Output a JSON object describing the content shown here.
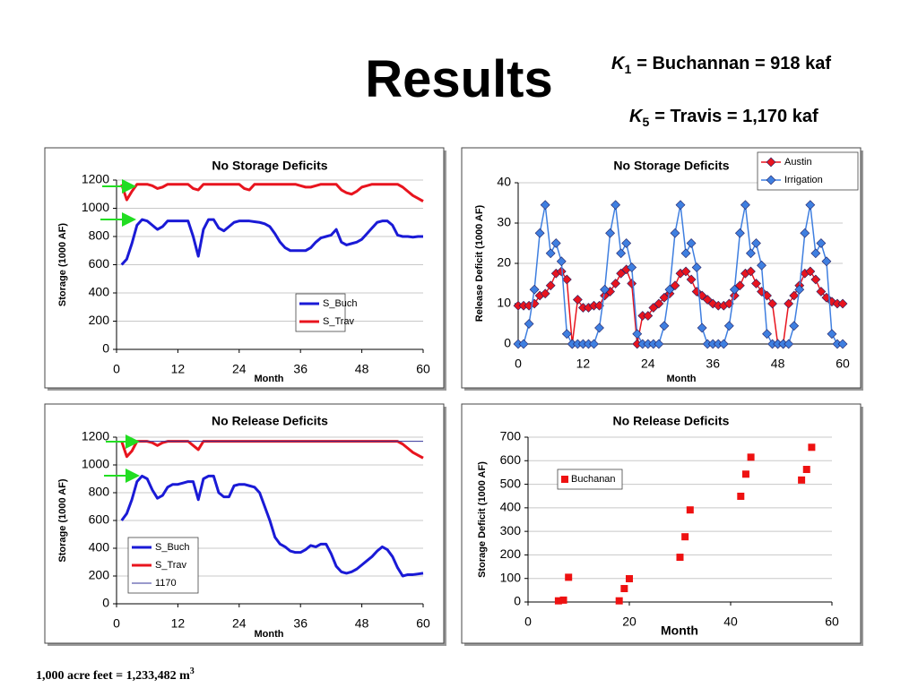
{
  "header": {
    "title": "Results",
    "notes": [
      {
        "symbol": "K",
        "subscript": "1",
        "text": "= Buchannan = 918 kaf"
      },
      {
        "symbol": "K",
        "subscript": "5",
        "text": "= Travis = 1,170 kaf"
      }
    ]
  },
  "footer": {
    "text": "1,000 acre feet = 1,233,482 m",
    "superscript": "3"
  },
  "chart_data": [
    {
      "type": "line",
      "title": "No Storage Deficits",
      "xlabel": "Month",
      "ylabel": "Storage (1000 AF)",
      "x": [
        1,
        2,
        3,
        4,
        5,
        6,
        7,
        8,
        9,
        10,
        11,
        12,
        13,
        14,
        15,
        16,
        17,
        18,
        19,
        20,
        21,
        22,
        23,
        24,
        25,
        26,
        27,
        28,
        29,
        30,
        31,
        32,
        33,
        34,
        35,
        36,
        37,
        38,
        39,
        40,
        41,
        42,
        43,
        44,
        45,
        46,
        47,
        48,
        49,
        50,
        51,
        52,
        53,
        54,
        55,
        56,
        57,
        58,
        59,
        60
      ],
      "series": [
        {
          "name": "S_Buch",
          "color": "#1a1ad6",
          "width": 3,
          "values": [
            600,
            640,
            750,
            880,
            920,
            910,
            880,
            850,
            870,
            910,
            910,
            910,
            910,
            910,
            800,
            660,
            850,
            920,
            920,
            860,
            840,
            870,
            900,
            910,
            910,
            910,
            905,
            900,
            890,
            870,
            820,
            760,
            720,
            700,
            700,
            700,
            700,
            720,
            760,
            790,
            800,
            810,
            850,
            760,
            740,
            750,
            760,
            780,
            820,
            860,
            900,
            910,
            910,
            880,
            810,
            800,
            800,
            795,
            800,
            800
          ]
        },
        {
          "name": "S_Trav",
          "color": "#e8141e",
          "width": 3,
          "values": [
            1170,
            1060,
            1120,
            1170,
            1170,
            1170,
            1160,
            1140,
            1150,
            1170,
            1170,
            1170,
            1170,
            1170,
            1140,
            1130,
            1170,
            1170,
            1170,
            1170,
            1170,
            1170,
            1170,
            1170,
            1140,
            1130,
            1170,
            1170,
            1170,
            1170,
            1170,
            1170,
            1170,
            1170,
            1170,
            1160,
            1150,
            1150,
            1160,
            1170,
            1170,
            1170,
            1170,
            1130,
            1110,
            1100,
            1120,
            1150,
            1160,
            1170,
            1170,
            1170,
            1170,
            1170,
            1170,
            1150,
            1120,
            1090,
            1070,
            1050
          ]
        }
      ],
      "xlim": [
        0,
        60
      ],
      "xticks": [
        0,
        12,
        24,
        36,
        48,
        60
      ],
      "ylim": [
        0,
        1200
      ],
      "yticks": [
        0,
        200,
        400,
        600,
        800,
        1000,
        1200
      ],
      "grid": true,
      "legend": "lower right"
    },
    {
      "type": "line",
      "title": "No Storage Deficits",
      "xlabel": "Month",
      "ylabel": "Release Deficit (1000 AF)",
      "marker": "diamond",
      "x": [
        0,
        1,
        2,
        3,
        4,
        5,
        6,
        7,
        8,
        9,
        10,
        11,
        12,
        13,
        14,
        15,
        16,
        17,
        18,
        19,
        20,
        21,
        22,
        23,
        24,
        25,
        26,
        27,
        28,
        29,
        30,
        31,
        32,
        33,
        34,
        35,
        36,
        37,
        38,
        39,
        40,
        41,
        42,
        43,
        44,
        45,
        46,
        47,
        48,
        49,
        50,
        51,
        52,
        53,
        54,
        55,
        56,
        57,
        58,
        59,
        60
      ],
      "series": [
        {
          "name": "Austin",
          "color": "#e8141e",
          "width": 1.5,
          "values": [
            9.5,
            9.5,
            9.5,
            10,
            12,
            12.5,
            14.5,
            17.5,
            18,
            16,
            0,
            11,
            9,
            9,
            9.5,
            9.5,
            12,
            13,
            15,
            17.5,
            18.5,
            15,
            0,
            7,
            7,
            9,
            10,
            11.5,
            12.5,
            14.5,
            17.5,
            18,
            16,
            13,
            12,
            11,
            10,
            9.5,
            9.5,
            10,
            12,
            14.5,
            17.5,
            18,
            15,
            13,
            12,
            10,
            0,
            0,
            10,
            12,
            14.5,
            17.5,
            18,
            16,
            13,
            11.5,
            10.5,
            10,
            10
          ]
        },
        {
          "name": "Irrigation",
          "color": "#3f7fe0",
          "width": 1.5,
          "values": [
            0,
            0,
            5,
            13.5,
            27.5,
            34.5,
            22.5,
            25,
            20.5,
            2.5,
            0,
            0,
            0,
            0,
            0,
            4,
            13.5,
            27.5,
            34.5,
            22.5,
            25,
            19,
            2.5,
            0,
            0,
            0,
            0,
            4.5,
            13.5,
            27.5,
            34.5,
            22.5,
            25,
            19,
            4,
            0,
            0,
            0,
            0,
            4.5,
            13.5,
            27.5,
            34.5,
            22.5,
            25,
            19.5,
            2.5,
            0,
            0,
            0,
            0,
            4.5,
            13.5,
            27.5,
            34.5,
            22.5,
            25,
            20.5,
            2.5,
            0,
            0
          ]
        }
      ],
      "xlim": [
        0,
        60
      ],
      "xticks": [
        0,
        12,
        24,
        36,
        48,
        60
      ],
      "ylim": [
        0,
        40
      ],
      "yticks": [
        0,
        10,
        20,
        30,
        40
      ],
      "grid": true,
      "legend": "upper right"
    },
    {
      "type": "line",
      "title": "No Release Deficits",
      "xlabel": "Month",
      "ylabel": "Storage (1000 AF)",
      "x": [
        1,
        2,
        3,
        4,
        5,
        6,
        7,
        8,
        9,
        10,
        11,
        12,
        13,
        14,
        15,
        16,
        17,
        18,
        19,
        20,
        21,
        22,
        23,
        24,
        25,
        26,
        27,
        28,
        29,
        30,
        31,
        32,
        33,
        34,
        35,
        36,
        37,
        38,
        39,
        40,
        41,
        42,
        43,
        44,
        45,
        46,
        47,
        48,
        49,
        50,
        51,
        52,
        53,
        54,
        55,
        56,
        57,
        58,
        59,
        60
      ],
      "series": [
        {
          "name": "S_Buch",
          "color": "#1a1ad6",
          "width": 3,
          "values": [
            600,
            650,
            750,
            880,
            920,
            900,
            820,
            760,
            780,
            840,
            860,
            860,
            870,
            880,
            880,
            750,
            900,
            920,
            920,
            800,
            770,
            770,
            850,
            860,
            860,
            850,
            840,
            800,
            700,
            600,
            480,
            430,
            410,
            380,
            370,
            370,
            390,
            420,
            410,
            430,
            430,
            360,
            270,
            230,
            220,
            230,
            250,
            280,
            310,
            340,
            380,
            410,
            390,
            340,
            260,
            200,
            210,
            210,
            215,
            220
          ]
        },
        {
          "name": "S_Trav",
          "color": "#e8141e",
          "width": 3,
          "values": [
            1170,
            1060,
            1100,
            1170,
            1170,
            1170,
            1160,
            1140,
            1160,
            1170,
            1170,
            1170,
            1170,
            1170,
            1140,
            1110,
            1170,
            1170,
            1170,
            1170,
            1170,
            1170,
            1170,
            1170,
            1170,
            1170,
            1170,
            1170,
            1170,
            1170,
            1170,
            1170,
            1170,
            1170,
            1170,
            1170,
            1170,
            1170,
            1170,
            1170,
            1170,
            1170,
            1170,
            1170,
            1170,
            1170,
            1170,
            1170,
            1170,
            1170,
            1170,
            1170,
            1170,
            1170,
            1170,
            1150,
            1120,
            1090,
            1070,
            1050
          ]
        },
        {
          "name": "1170",
          "color": "#333399",
          "width": 1,
          "values": [
            1170,
            1170,
            1170,
            1170,
            1170,
            1170,
            1170,
            1170,
            1170,
            1170,
            1170,
            1170,
            1170,
            1170,
            1170,
            1170,
            1170,
            1170,
            1170,
            1170,
            1170,
            1170,
            1170,
            1170,
            1170,
            1170,
            1170,
            1170,
            1170,
            1170,
            1170,
            1170,
            1170,
            1170,
            1170,
            1170,
            1170,
            1170,
            1170,
            1170,
            1170,
            1170,
            1170,
            1170,
            1170,
            1170,
            1170,
            1170,
            1170,
            1170,
            1170,
            1170,
            1170,
            1170,
            1170,
            1170,
            1170,
            1170,
            1170,
            1170
          ]
        }
      ],
      "xlim": [
        0,
        60
      ],
      "xticks": [
        0,
        12,
        24,
        36,
        48,
        60
      ],
      "ylim": [
        0,
        1200
      ],
      "yticks": [
        0,
        200,
        400,
        600,
        800,
        1000,
        1200
      ],
      "grid": true,
      "legend": "lower left"
    },
    {
      "type": "scatter",
      "title": "No Release Deficits",
      "xlabel": "Month",
      "ylabel": "Storage Deficit (1000 AF)",
      "marker": "square",
      "x": [
        6,
        7,
        8,
        18,
        19,
        20,
        30,
        31,
        32,
        42,
        43,
        44,
        54,
        55,
        56
      ],
      "series": [
        {
          "name": "Buchanan",
          "color": "#ee1111",
          "values": [
            5,
            8,
            105,
            5,
            57,
            99,
            190,
            277,
            391,
            449,
            543,
            615,
            518,
            563,
            657
          ]
        }
      ],
      "xlim": [
        0,
        60
      ],
      "xticks": [
        0,
        20,
        40,
        60
      ],
      "ylim": [
        0,
        700
      ],
      "yticks": [
        0,
        100,
        200,
        300,
        400,
        500,
        600,
        700
      ],
      "grid": true,
      "legend": "upper left"
    }
  ]
}
